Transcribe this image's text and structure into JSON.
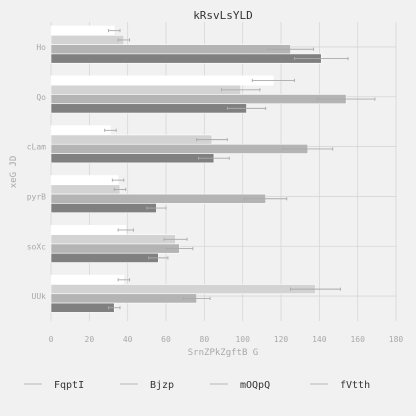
{
  "chart_data": {
    "type": "bar",
    "orientation": "horizontal",
    "title": "kRsvLsYLD",
    "xlabel": "SrnZPkZgftB G",
    "ylabel": "xeG JD",
    "xlim": [
      0,
      180
    ],
    "x_ticks": [
      0,
      20,
      40,
      60,
      80,
      100,
      120,
      140,
      160,
      180
    ],
    "x_tick_labels": [
      "0",
      "20",
      "40",
      "60",
      "80",
      "100",
      "120",
      "140",
      "160",
      "180"
    ],
    "categories": [
      "Ho",
      "Qo",
      "cLam",
      "pyrB",
      "soXc",
      "UUk"
    ],
    "grid": true,
    "legend_position": "bottom",
    "series": [
      {
        "name": "FqptI",
        "color": "#ffffff",
        "values": [
          33,
          116,
          31,
          35,
          39,
          38
        ],
        "errors": [
          3,
          11,
          3,
          3,
          4,
          3
        ]
      },
      {
        "name": "Bjzp",
        "color": "#d3d3d3",
        "values": [
          38,
          99,
          84,
          36,
          65,
          138
        ],
        "errors": [
          3,
          10,
          8,
          3,
          6,
          13
        ]
      },
      {
        "name": "mOQpQ",
        "color": "#b4b4b4",
        "values": [
          125,
          154,
          134,
          112,
          67,
          76
        ],
        "errors": [
          12,
          15,
          13,
          11,
          7,
          7
        ]
      },
      {
        "name": "fVtth",
        "color": "#808080",
        "values": [
          141,
          102,
          85,
          55,
          56,
          33
        ],
        "errors": [
          14,
          10,
          8,
          5,
          5,
          3
        ]
      }
    ]
  }
}
